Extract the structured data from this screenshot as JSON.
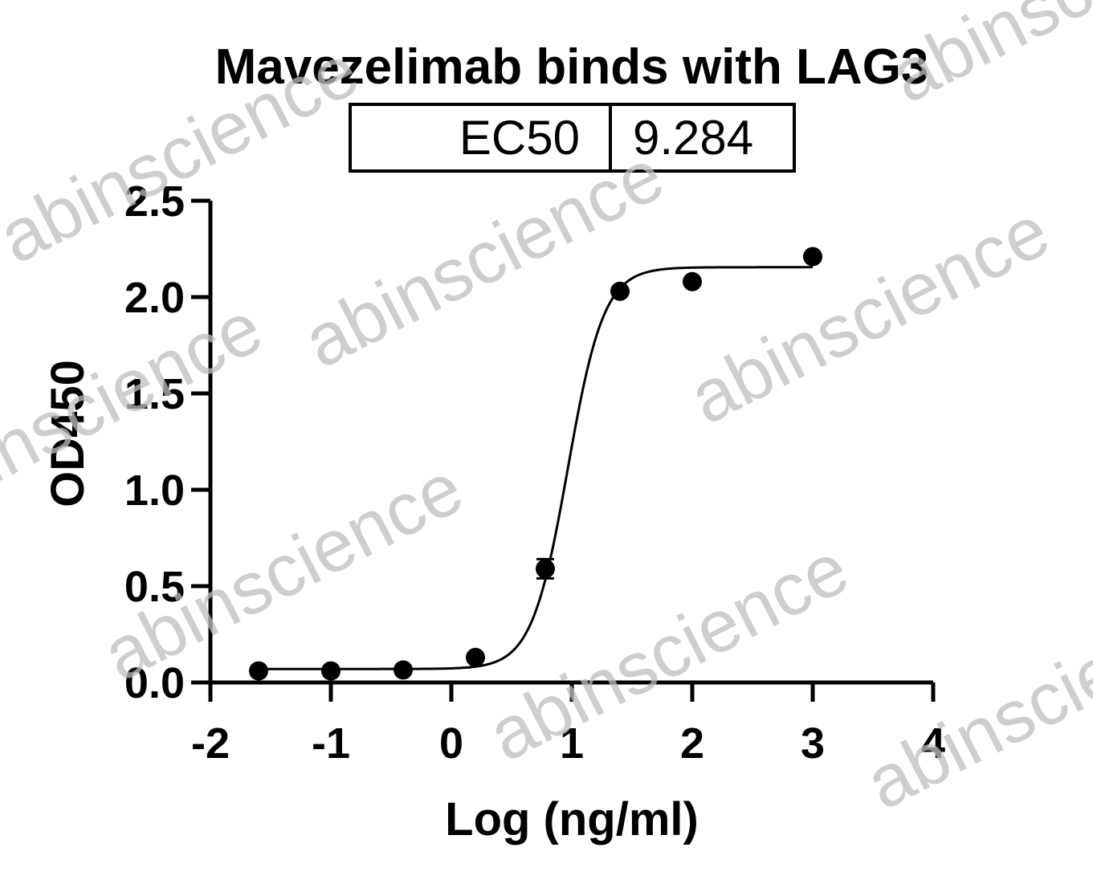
{
  "chart_data": {
    "type": "scatter",
    "title": "Mavezelimab binds with LAG3",
    "xlabel": "Log (ng/ml)",
    "ylabel": "OD450",
    "xlim": [
      -2,
      4
    ],
    "ylim": [
      0,
      2.5
    ],
    "x_ticks": [
      -2,
      -1,
      0,
      1,
      2,
      3,
      4
    ],
    "x_tick_labels": [
      "-2",
      "-1",
      "0",
      "1",
      "2",
      "3",
      "4"
    ],
    "y_ticks": [
      0,
      0.5,
      1,
      1.5,
      2,
      2.5
    ],
    "y_tick_labels": [
      "0.0",
      "0.5",
      "1.0",
      "1.5",
      "2.0",
      "2.5"
    ],
    "grid": false,
    "series": [
      {
        "points": [
          {
            "x": -1.6,
            "y": 0.06,
            "err": 0.0
          },
          {
            "x": -1.0,
            "y": 0.06,
            "err": 0.0
          },
          {
            "x": -0.4,
            "y": 0.065,
            "err": 0.0
          },
          {
            "x": 0.2,
            "y": 0.13,
            "err": 0.0
          },
          {
            "x": 0.78,
            "y": 0.59,
            "err": 0.05
          },
          {
            "x": 1.4,
            "y": 2.03,
            "err": 0.0
          },
          {
            "x": 2.0,
            "y": 2.08,
            "err": 0.0
          },
          {
            "x": 3.0,
            "y": 2.21,
            "err": 0.0
          }
        ],
        "fit": {
          "model": "4PL",
          "bottom": 0.07,
          "top": 2.155,
          "logEC50": 0.9677,
          "hill": 2.9,
          "x_range": [
            -1.6,
            3.0
          ]
        }
      }
    ],
    "stats_table": {
      "label": "EC50",
      "value": "9.284"
    }
  },
  "watermark_text": "abinscience",
  "style": {
    "line_color": "#000000",
    "marker_color": "#000000",
    "watermark_color": "#bdbdbd"
  }
}
